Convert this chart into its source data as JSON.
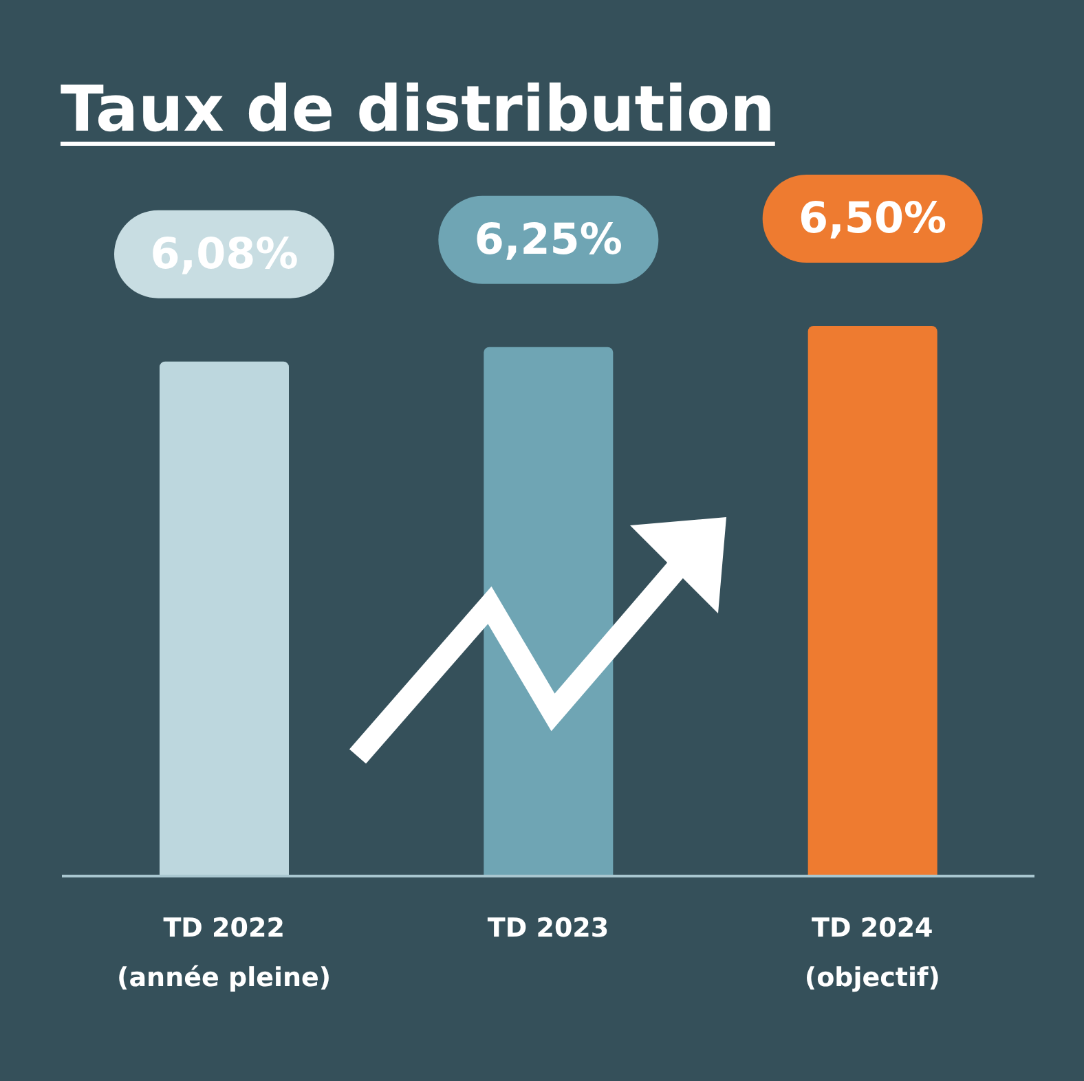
{
  "chart_data": {
    "type": "bar",
    "title": "Taux de distribution",
    "categories": [
      "TD 2022\n(année pleine)",
      "TD 2023",
      "TD 2024\n(objectif)"
    ],
    "values": [
      6.08,
      6.25,
      6.5
    ],
    "colors": [
      "#bdd7de",
      "#6fa5b4",
      "#ee7b30"
    ],
    "value_labels": [
      "6,08%",
      "6,25%",
      "6,50%"
    ],
    "tick_labels": "x"
  }
}
